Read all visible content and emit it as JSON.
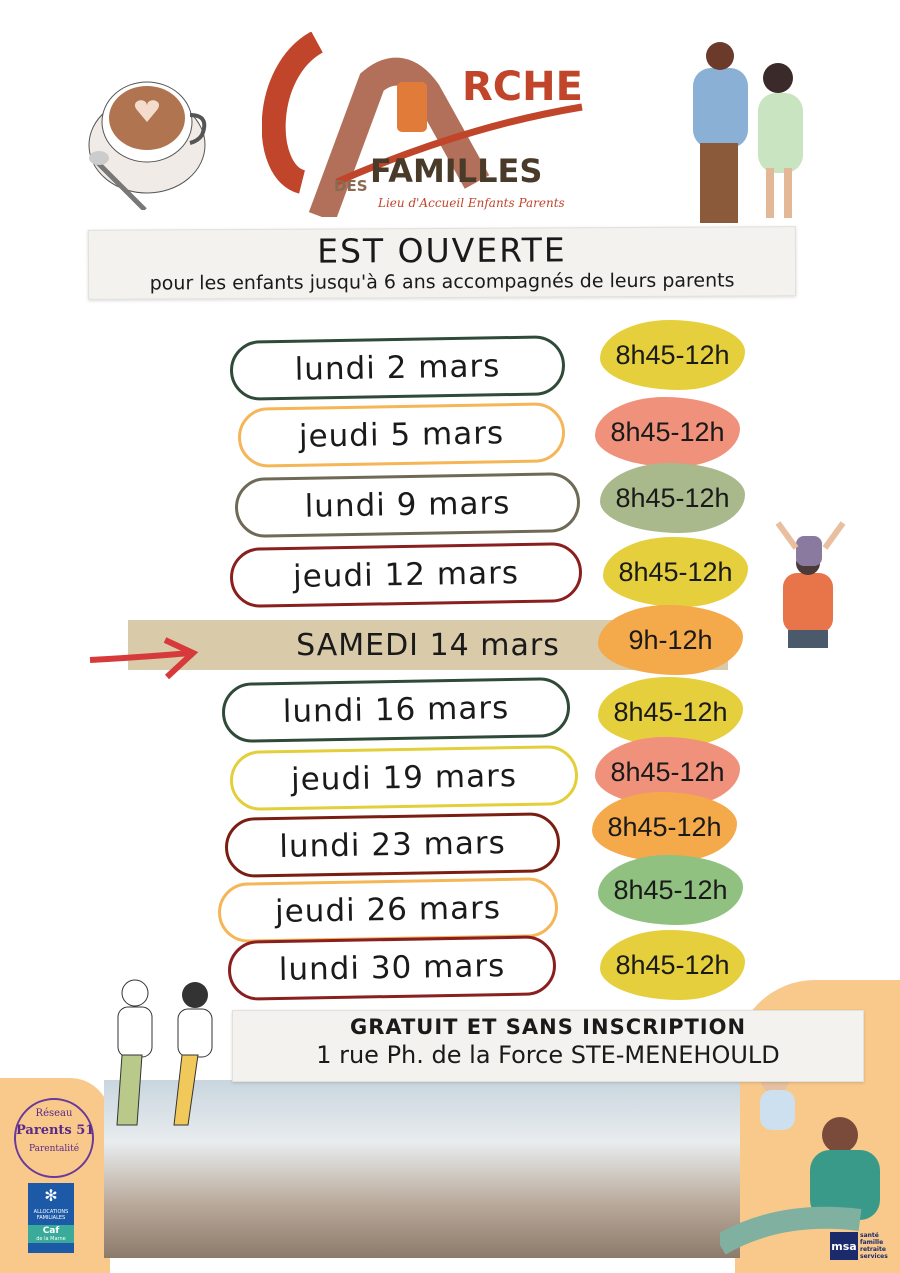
{
  "logo": {
    "part1": "L'",
    "part2": "RCHE",
    "des": "DES",
    "familles": "FAMILLES",
    "tagline": "Lieu d'Accueil Enfants Parents"
  },
  "header": {
    "title": "EST OUVERTE",
    "subtitle": "pour les enfants jusqu'à 6 ans accompagnés de leurs parents"
  },
  "schedule": [
    {
      "day": "lundi 2 mars",
      "hours": "8h45-12h",
      "outline": "#2f4a38",
      "blob": "#e5cf3c"
    },
    {
      "day": "jeudi 5 mars",
      "hours": "8h45-12h",
      "outline": "#f4b657",
      "blob": "#f0917b"
    },
    {
      "day": "lundi 9 mars",
      "hours": "8h45-12h",
      "outline": "#6e6a55",
      "blob": "#a9b98b"
    },
    {
      "day": "jeudi 12 mars",
      "hours": "8h45-12h",
      "outline": "#8a1f1f",
      "blob": "#e5cf3c"
    },
    {
      "day": "SAMEDI 14 mars",
      "hours": "9h-12h",
      "outline": "none",
      "blob": "#f4a94b",
      "highlight": true
    },
    {
      "day": "lundi 16 mars",
      "hours": "8h45-12h",
      "outline": "#2f4a38",
      "blob": "#e5cf3c"
    },
    {
      "day": "jeudi 19 mars",
      "hours": "8h45-12h",
      "outline": "#e2cf3a",
      "blob": "#f0917b"
    },
    {
      "day": "lundi 23 mars",
      "hours": "8h45-12h",
      "outline": "#7a1e12",
      "blob": "#f4a94b"
    },
    {
      "day": "jeudi 26 mars",
      "hours": "8h45-12h",
      "outline": "#f4b657",
      "blob": "#90c180"
    },
    {
      "day": "lundi 30 mars",
      "hours": "8h45-12h",
      "outline": "#8a1f1f",
      "blob": "#e5cf3c"
    }
  ],
  "footer": {
    "line1": "GRATUIT ET SANS INSCRIPTION",
    "line2": "1 rue Ph. de la Force STE-MENEHOULD"
  },
  "partners": {
    "reseau": {
      "top": "Réseau",
      "main": "Parents 51",
      "bottom": "Parentalité"
    },
    "caf": {
      "line1": "ALLOCATIONS FAMILIALES",
      "line2": "Caf",
      "line3": "de la Marne"
    },
    "msa": {
      "logo": "msa",
      "lines": [
        "santé",
        "famille",
        "retraite",
        "services"
      ]
    }
  }
}
